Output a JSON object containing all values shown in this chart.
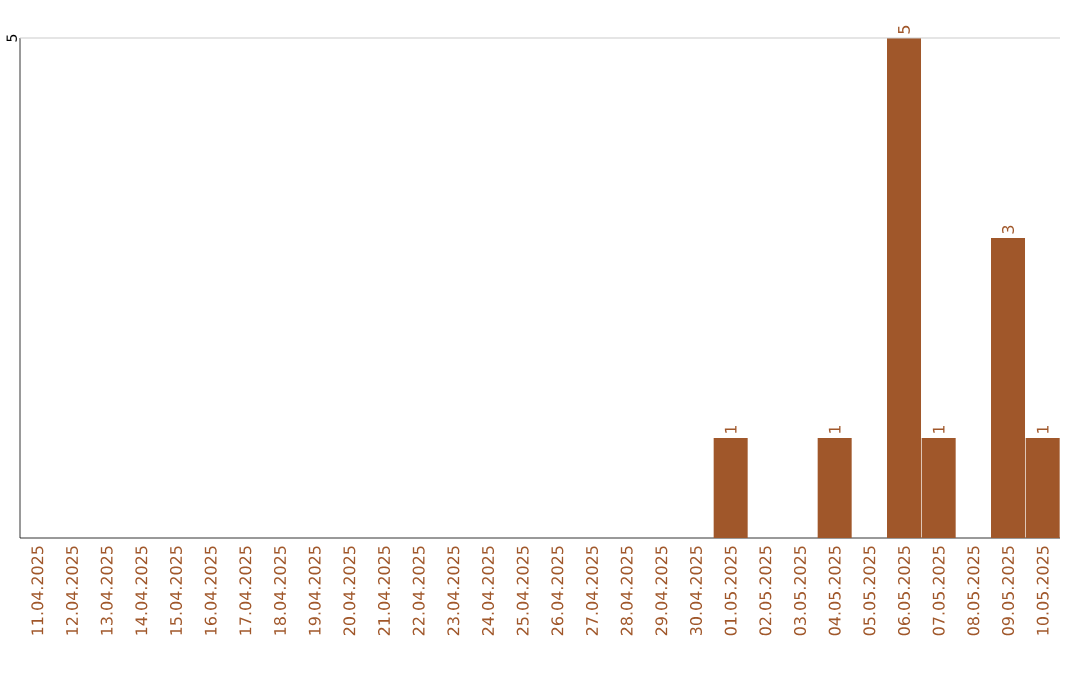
{
  "chart_data": {
    "type": "bar",
    "categories": [
      "11.04.2025",
      "12.04.2025",
      "13.04.2025",
      "14.04.2025",
      "15.04.2025",
      "16.04.2025",
      "17.04.2025",
      "18.04.2025",
      "19.04.2025",
      "20.04.2025",
      "21.04.2025",
      "22.04.2025",
      "23.04.2025",
      "24.04.2025",
      "25.04.2025",
      "26.04.2025",
      "27.04.2025",
      "28.04.2025",
      "29.04.2025",
      "30.04.2025",
      "01.05.2025",
      "02.05.2025",
      "03.05.2025",
      "04.05.2025",
      "05.05.2025",
      "06.05.2025",
      "07.05.2025",
      "08.05.2025",
      "09.05.2025",
      "10.05.2025"
    ],
    "values": [
      null,
      null,
      null,
      null,
      null,
      null,
      null,
      null,
      null,
      null,
      null,
      null,
      null,
      null,
      null,
      null,
      null,
      null,
      null,
      null,
      1,
      null,
      null,
      1,
      null,
      5,
      1,
      null,
      3,
      1
    ],
    "color": "#a0572a",
    "ylim": [
      0,
      5
    ],
    "yticks": [
      5
    ],
    "ref_lines": [
      {
        "axis": "y",
        "value": 5,
        "color": "#cccccc"
      }
    ],
    "data_labels": true
  }
}
